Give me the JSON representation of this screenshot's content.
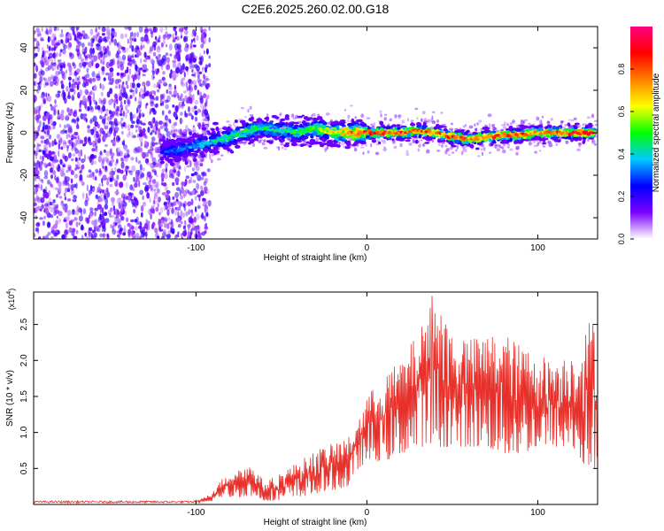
{
  "figure_title": "C2E6.2025.260.02.00.G18",
  "chart_data": [
    {
      "type": "heatmap",
      "name": "spectrogram",
      "xlabel": "Height of straight line (km)",
      "ylabel": "Frequency (Hz)",
      "xlim": [
        -195,
        135
      ],
      "ylim": [
        -50,
        50
      ],
      "xticks": [
        -100,
        0,
        100
      ],
      "xtick_labels": [
        "-100",
        "0",
        "100"
      ],
      "yticks": [
        -40,
        -20,
        0,
        20,
        40
      ],
      "ytick_labels": [
        "-40",
        "-20",
        "0",
        "20",
        "40"
      ],
      "noise_region_x": [
        -195,
        -100
      ],
      "ridge_track": {
        "x": [
          -120,
          -110,
          -100,
          -90,
          -80,
          -70,
          -60,
          -50,
          -40,
          -30,
          -20,
          -10,
          0,
          10,
          20,
          30,
          40,
          50,
          60,
          70,
          80,
          90,
          100,
          110,
          120,
          133
        ],
        "y": [
          -9,
          -8,
          -6,
          -4,
          -2,
          1,
          2,
          1,
          0,
          2,
          0,
          0,
          0,
          0,
          0,
          1,
          0,
          -2,
          -3,
          -2,
          -1,
          -1,
          0,
          0,
          0,
          0
        ],
        "amplitude": [
          0.3,
          0.35,
          0.4,
          0.45,
          0.5,
          0.55,
          0.5,
          0.5,
          0.55,
          0.6,
          0.7,
          0.85,
          0.9,
          0.9,
          0.95,
          0.9,
          0.85,
          0.9,
          0.85,
          0.85,
          0.9,
          0.9,
          0.85,
          0.9,
          0.95,
          0.95
        ]
      },
      "colorbar": {
        "label": "Normalized spectral amplitude",
        "range": [
          0,
          1
        ],
        "ticks": [
          0.0,
          0.2,
          0.4,
          0.6,
          0.8
        ],
        "tick_labels": [
          "0.0",
          "0.2",
          "0.4",
          "0.6",
          "0.8"
        ],
        "colormap": [
          "#ffffff",
          "#7b00ff",
          "#0000ff",
          "#00c8ff",
          "#00ff00",
          "#ffff00",
          "#ff8000",
          "#ff0000",
          "#ff0080"
        ]
      }
    },
    {
      "type": "line",
      "name": "snr",
      "xlabel": "Height of straight line (km)",
      "ylabel": "SNR (10 * v/v)",
      "exponent_label": "(x10",
      "exponent_power": "4",
      "exponent_close": ")",
      "xlim": [
        -195,
        135
      ],
      "ylim": [
        0,
        2.95
      ],
      "xticks": [
        -100,
        0,
        100
      ],
      "xtick_labels": [
        "-100",
        "0",
        "100"
      ],
      "yticks": [
        0.5,
        1.0,
        1.5,
        2.0,
        2.5
      ],
      "ytick_labels": [
        "0.5",
        "1.0",
        "1.5",
        "2.0",
        "2.5"
      ],
      "color": "#e8302a",
      "envelope": {
        "x": [
          -195,
          -100,
          -95,
          -90,
          -85,
          -80,
          -75,
          -70,
          -65,
          -60,
          -50,
          -40,
          -30,
          -20,
          -10,
          -5,
          0,
          10,
          20,
          30,
          40,
          50,
          60,
          70,
          80,
          90,
          100,
          110,
          120,
          125,
          130,
          135
        ],
        "y_low": [
          0.02,
          0.02,
          0.02,
          0.05,
          0.1,
          0.1,
          0.1,
          0.12,
          0.1,
          0.05,
          0.05,
          0.1,
          0.15,
          0.2,
          0.25,
          0.5,
          0.6,
          0.6,
          0.7,
          0.8,
          0.8,
          0.8,
          0.8,
          0.8,
          0.7,
          0.7,
          0.8,
          0.8,
          0.8,
          0.6,
          0.5,
          0.5
        ],
        "y_high": [
          0.05,
          0.05,
          0.1,
          0.2,
          0.35,
          0.45,
          0.5,
          0.55,
          0.5,
          0.3,
          0.45,
          0.6,
          0.75,
          0.85,
          0.95,
          1.2,
          1.5,
          1.8,
          2.0,
          2.4,
          2.9,
          2.4,
          2.3,
          2.35,
          2.4,
          2.2,
          2.1,
          2.0,
          2.1,
          2.2,
          2.55,
          2.6
        ]
      },
      "peak": {
        "x": 38,
        "y": 2.9
      }
    }
  ]
}
